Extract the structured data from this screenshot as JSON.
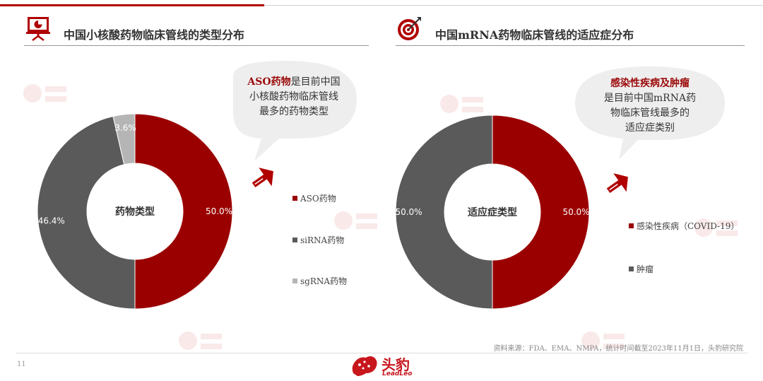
{
  "header_left": {
    "title": "中国小核酸药物临床管线的类型分布"
  },
  "header_right": {
    "title": "中国mRNA药物临床管线的适应症分布"
  },
  "bubble_left": {
    "highlight": "ASO药物",
    "line1_rest": "是目前中国",
    "line2": "小核酸药物临床管线",
    "line3": "最多的药物类型"
  },
  "bubble_right": {
    "highlight": "感染性疾病及肿瘤",
    "line2": "是目前中国mRNA药",
    "line3": "物临床管线最多的",
    "line4": "适应症类别"
  },
  "chart_data": [
    {
      "type": "pie",
      "donut": true,
      "center_label": "药物类型",
      "slices": [
        {
          "label": "ASO药物",
          "value": 50.0,
          "value_label": "50.0%",
          "color": "#9b0000"
        },
        {
          "label": "siRNA药物",
          "value": 46.4,
          "value_label": "46.4%",
          "color": "#5a5a5a"
        },
        {
          "label": "sgRNA药物",
          "value": 3.6,
          "value_label": "3.6%",
          "color": "#b5b5b5"
        }
      ],
      "legend_position": "right"
    },
    {
      "type": "pie",
      "donut": true,
      "center_label": "适应症类型",
      "slices": [
        {
          "label": "感染性疾病（COVID-19）",
          "value": 50.0,
          "value_label": "50.0%",
          "color": "#9b0000"
        },
        {
          "label": "肿瘤",
          "value": 50.0,
          "value_label": "50.0%",
          "color": "#5a5a5a"
        }
      ],
      "legend_position": "right"
    }
  ],
  "source": "资料来源：FDA、EMA、NMPA，统计时间截至2023年11月1日，头豹研究院",
  "page_number": "11",
  "brand": {
    "name": "头豹",
    "subname": "LeadLeo",
    "color": "#c8161d"
  }
}
